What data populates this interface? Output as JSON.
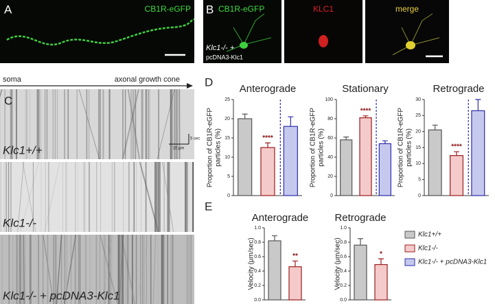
{
  "panels": {
    "a": {
      "label": "A",
      "stain": "CB1R-eGFP"
    },
    "b": {
      "label": "B",
      "stains": [
        "CB1R-eGFP",
        "KLC1",
        "merge"
      ],
      "genotype": [
        "Klc1-/- +",
        "pcDNA3-Klc1"
      ]
    },
    "c": {
      "label": "C",
      "start": "soma",
      "end": "axonal growth cone",
      "time_scale": "5 sec",
      "space_scale": "10 µm",
      "kymographs": [
        "Klc1+/+",
        "Klc1-/-",
        "Klc1-/- + pcDNA3-Klc1"
      ]
    },
    "d": {
      "label": "D"
    },
    "e": {
      "label": "E"
    }
  },
  "legend": [
    {
      "name": "Klc1+/+",
      "color": "#c9c9c9",
      "edge": "#555555"
    },
    {
      "name": "Klc1-/-",
      "color": "#f5caca",
      "edge": "#9a1c1c"
    },
    {
      "name": "Klc1-/- + pcDNA3-Klc1",
      "color": "#c6c9ee",
      "edge": "#2b2ba8"
    }
  ],
  "chart_data": [
    {
      "type": "bar",
      "title": "Anterograde",
      "ylabel": [
        "Proportion of CB1R-eGFP",
        "particles (%)"
      ],
      "values": [
        20,
        12.5,
        18
      ],
      "errors": [
        1.2,
        1.2,
        2.5
      ],
      "annotations": [
        null,
        "****",
        null
      ],
      "ylim": [
        0,
        25
      ],
      "yticks": [
        0,
        5,
        10,
        15,
        20,
        25
      ],
      "separator": true
    },
    {
      "type": "bar",
      "title": "Stationary",
      "ylabel": [
        "Proportion of CB1R-eGFP",
        "particles (%)"
      ],
      "values": [
        58,
        81,
        54
      ],
      "errors": [
        3,
        2,
        3
      ],
      "annotations": [
        null,
        "****",
        null
      ],
      "ylim": [
        0,
        100
      ],
      "yticks": [
        0,
        20,
        40,
        60,
        80,
        100
      ],
      "separator": true
    },
    {
      "type": "bar",
      "title": "Retrograde",
      "ylabel": [
        "Proportion of CB1R-eGFP",
        "particles (%)"
      ],
      "values": [
        20.5,
        12.5,
        26.5
      ],
      "errors": [
        1.5,
        1.2,
        3.5
      ],
      "annotations": [
        null,
        "****",
        null
      ],
      "ylim": [
        0,
        30
      ],
      "yticks": [
        0,
        5,
        10,
        15,
        20,
        25,
        30
      ],
      "separator": true
    },
    {
      "type": "bar",
      "title": "Anterograde",
      "ylabel": [
        "Velocity (µm/sec)"
      ],
      "values": [
        0.82,
        0.46
      ],
      "errors": [
        0.07,
        0.08
      ],
      "annotations": [
        null,
        "**"
      ],
      "ylim": [
        0,
        1
      ],
      "yticks": [
        {
          "value": 0,
          "label": "0.0"
        },
        0.2,
        0.4,
        0.6,
        0.8,
        {
          "value": 1,
          "label": "1.0"
        }
      ],
      "separator": false
    },
    {
      "type": "bar",
      "title": "Retrograde",
      "ylabel": [
        "Velocity (µm/sec)"
      ],
      "values": [
        0.76,
        0.49
      ],
      "errors": [
        0.09,
        0.08
      ],
      "annotations": [
        null,
        "*"
      ],
      "ylim": [
        0,
        1
      ],
      "yticks": [
        {
          "value": 0,
          "label": "0.0"
        },
        0.2,
        0.4,
        0.6,
        0.8,
        {
          "value": 1,
          "label": "1.0"
        }
      ],
      "separator": false
    }
  ]
}
